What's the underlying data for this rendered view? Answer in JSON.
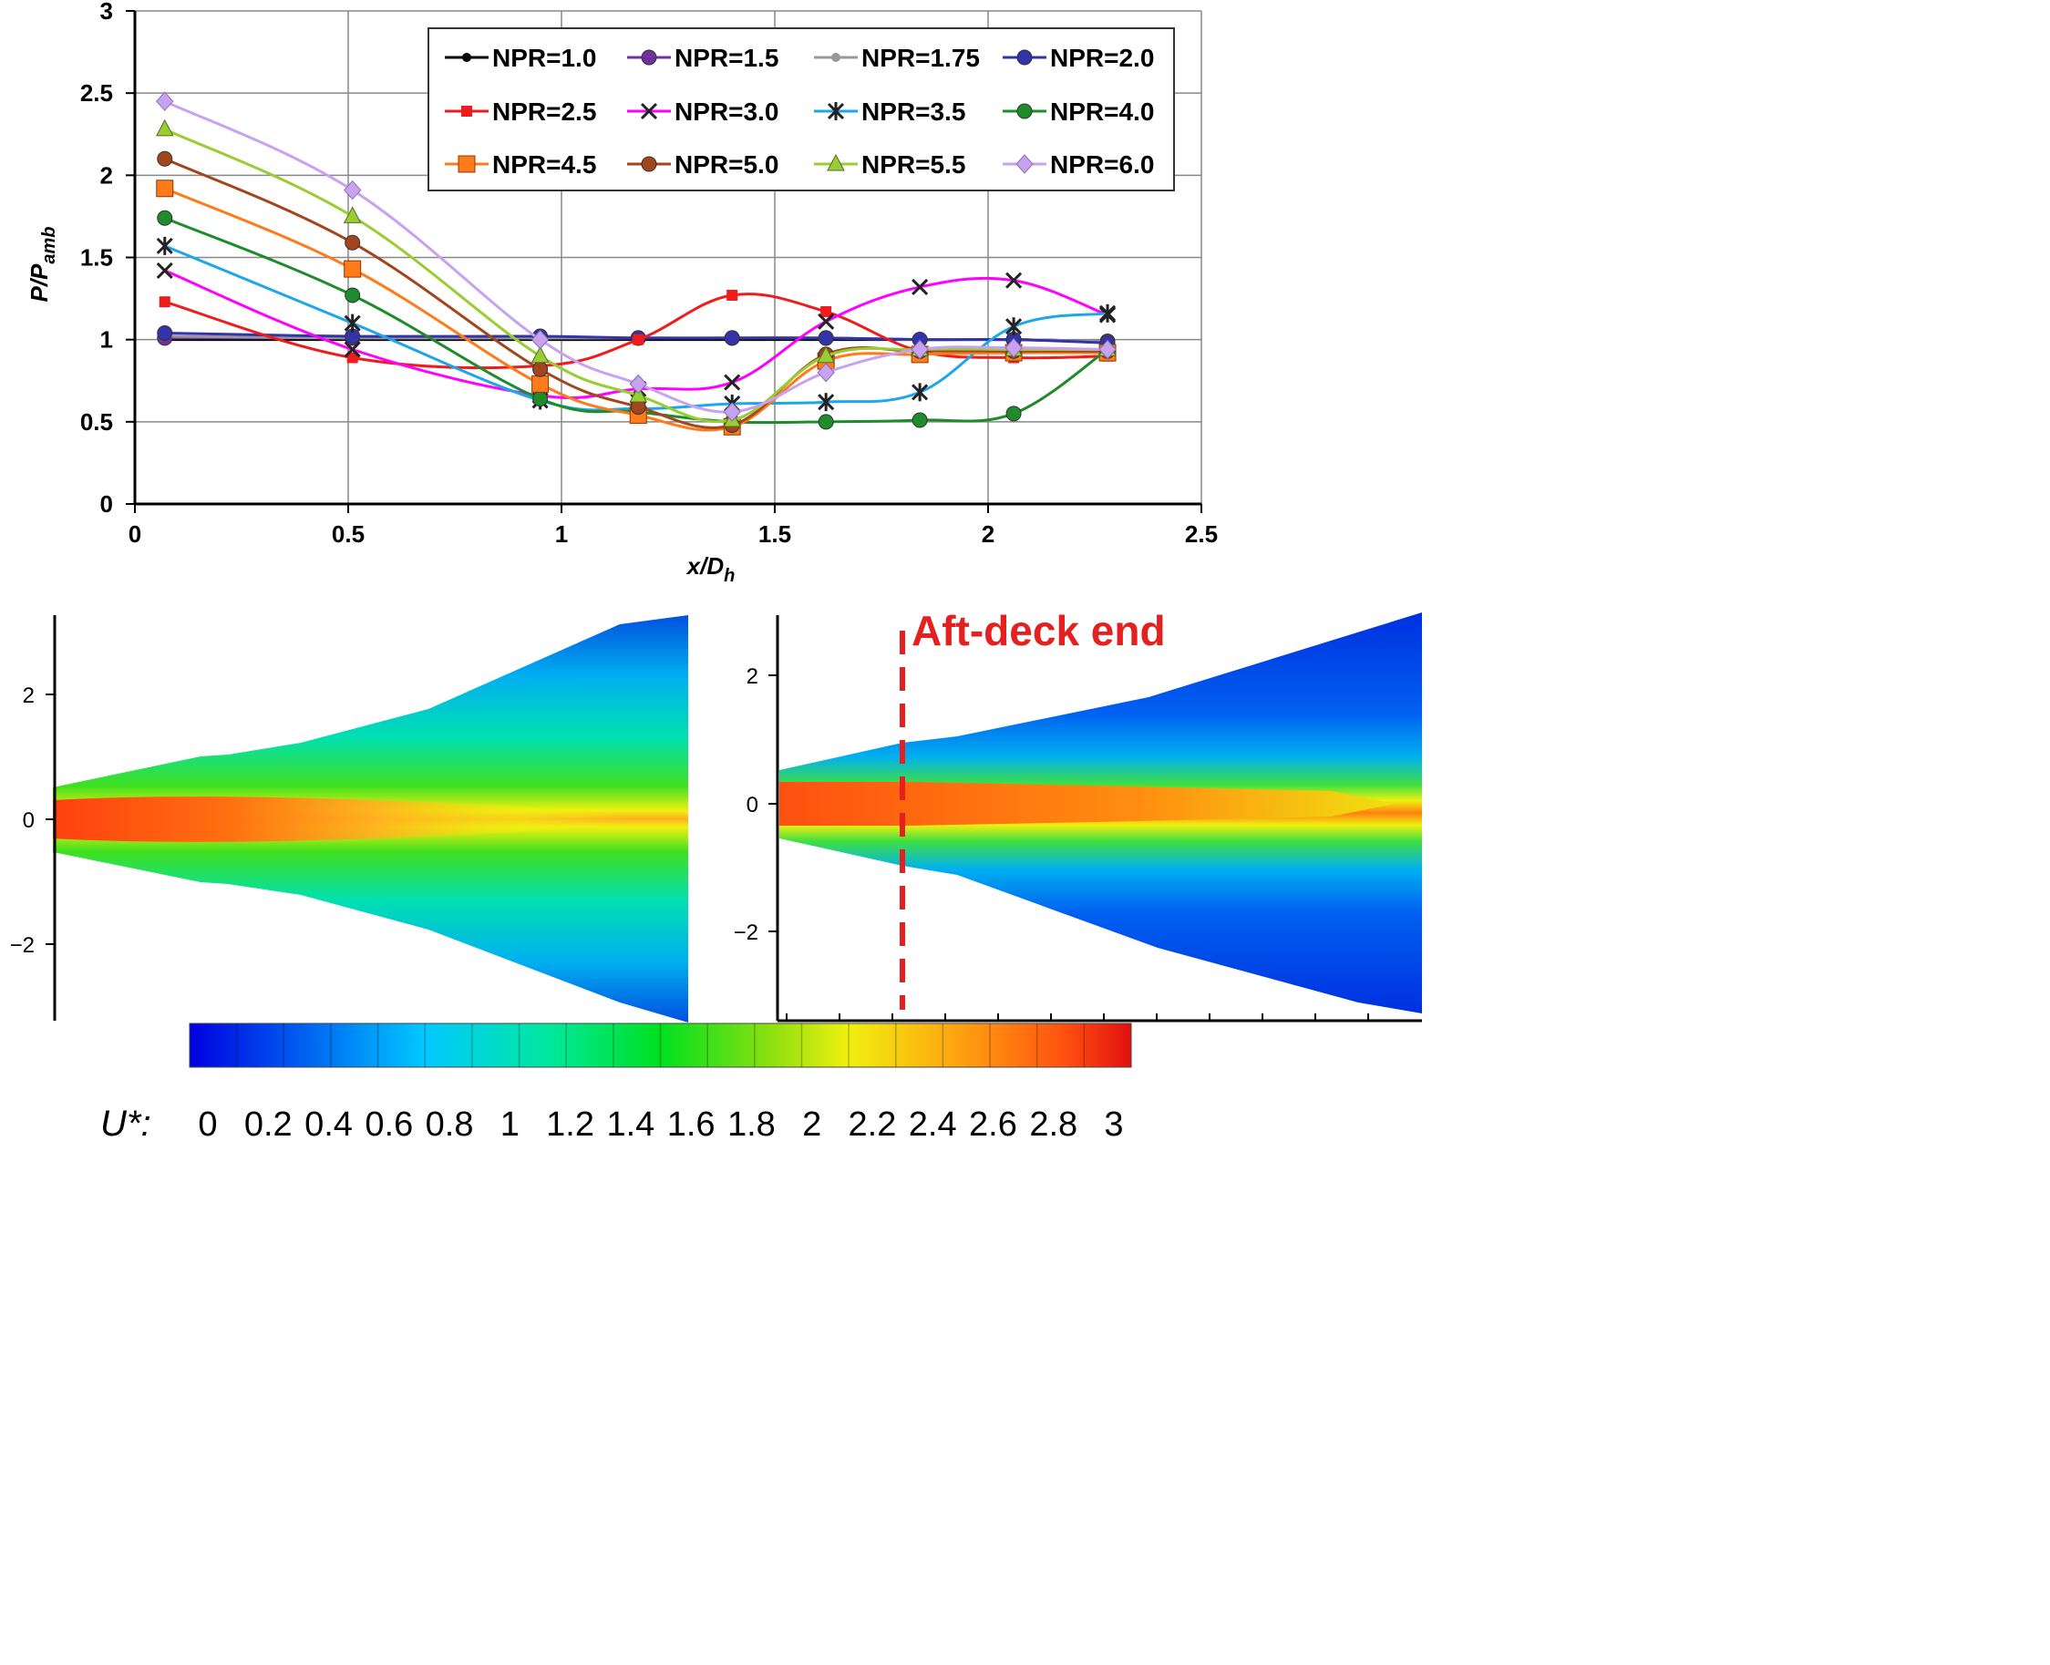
{
  "line_chart": {
    "x_axis_label": "x/D",
    "x_axis_label_sub": "h",
    "y_axis_label": "P/P",
    "y_axis_label_sub": "amb",
    "x_ticks": [
      "0",
      "0.5",
      "1",
      "1.5",
      "2",
      "2.5"
    ],
    "y_ticks": [
      "0",
      "0.5",
      "1",
      "1.5",
      "2",
      "2.5",
      "3"
    ]
  },
  "contour_left": {
    "y_ticks": [
      "2",
      "0",
      "−2"
    ]
  },
  "contour_right": {
    "y_ticks": [
      "2",
      "0",
      "−2"
    ],
    "annotation": "Aft-deck end",
    "annotation_color": "#e52020"
  },
  "colorbar": {
    "label": "U*:",
    "ticks": [
      "0",
      "0.2",
      "0.4",
      "0.6",
      "0.8",
      "1",
      "1.2",
      "1.4",
      "1.6",
      "1.8",
      "2",
      "2.2",
      "2.4",
      "2.6",
      "2.8",
      "3"
    ]
  },
  "chart_data": [
    {
      "type": "line",
      "xlabel": "x/Dh",
      "ylabel": "P/Pamb",
      "xlim": [
        0,
        2.5
      ],
      "ylim": [
        0,
        3
      ],
      "grid": true,
      "legend_position": "top-right",
      "x": [
        0.07,
        0.51,
        0.95,
        1.18,
        1.4,
        1.62,
        1.84,
        2.06,
        2.28
      ],
      "series": [
        {
          "name": "NPR=1.0",
          "color": "#000000",
          "marker": "circle-small",
          "values": [
            1.0,
            1.0,
            1.0,
            1.0,
            1.0,
            1.0,
            1.0,
            1.0,
            0.99
          ]
        },
        {
          "name": "NPR=1.5",
          "color": "#7030a0",
          "marker": "circle",
          "values": [
            1.01,
            1.01,
            1.01,
            1.01,
            1.01,
            1.01,
            1.0,
            1.0,
            0.99
          ]
        },
        {
          "name": "NPR=1.75",
          "color": "#999999",
          "marker": "circle-small",
          "values": [
            1.02,
            1.01,
            1.01,
            1.01,
            1.01,
            1.01,
            1.0,
            1.0,
            0.99
          ]
        },
        {
          "name": "NPR=2.0",
          "color": "#3333aa",
          "marker": "circle",
          "values": [
            1.04,
            1.02,
            1.02,
            1.01,
            1.01,
            1.01,
            1.0,
            1.0,
            0.98
          ]
        },
        {
          "name": "NPR=2.5",
          "color": "#ee1c1c",
          "marker": "square-small",
          "values": [
            1.23,
            0.89,
            0.84,
            1.0,
            1.27,
            1.17,
            0.93,
            0.89,
            0.9
          ]
        },
        {
          "name": "NPR=3.0",
          "color": "#ff00ff",
          "marker": "x",
          "values": [
            1.42,
            0.94,
            0.66,
            0.7,
            0.74,
            1.11,
            1.32,
            1.36,
            1.15
          ]
        },
        {
          "name": "NPR=3.5",
          "color": "#1ea7e8",
          "marker": "star",
          "values": [
            1.57,
            1.1,
            0.63,
            0.58,
            0.61,
            0.62,
            0.68,
            1.08,
            1.16
          ]
        },
        {
          "name": "NPR=4.0",
          "color": "#1e8c2a",
          "marker": "circle",
          "values": [
            1.74,
            1.27,
            0.64,
            0.56,
            0.5,
            0.5,
            0.51,
            0.55,
            0.94
          ]
        },
        {
          "name": "NPR=4.5",
          "color": "#ff7a1a",
          "marker": "square",
          "values": [
            1.92,
            1.43,
            0.73,
            0.54,
            0.47,
            0.87,
            0.91,
            0.92,
            0.92
          ]
        },
        {
          "name": "NPR=5.0",
          "color": "#a2461e",
          "marker": "circle",
          "values": [
            2.1,
            1.59,
            0.82,
            0.59,
            0.48,
            0.91,
            0.93,
            0.93,
            0.93
          ]
        },
        {
          "name": "NPR=5.5",
          "color": "#9acd32",
          "marker": "triangle",
          "values": [
            2.28,
            1.75,
            0.9,
            0.66,
            0.51,
            0.9,
            0.94,
            0.94,
            0.94
          ]
        },
        {
          "name": "NPR=6.0",
          "color": "#c8a2f0",
          "marker": "diamond",
          "values": [
            2.45,
            1.91,
            1.0,
            0.73,
            0.56,
            0.8,
            0.94,
            0.95,
            0.94
          ]
        }
      ]
    },
    {
      "type": "heatmap",
      "ylim": [
        -3.2,
        3.2
      ],
      "yticks": [
        2,
        0,
        -2
      ],
      "colorscale_range": [
        0,
        3
      ]
    },
    {
      "type": "heatmap",
      "ylim": [
        -3.3,
        2.8
      ],
      "yticks": [
        2,
        0,
        -2
      ],
      "annotation": "Aft-deck end",
      "colorscale_range": [
        0,
        3
      ]
    }
  ]
}
